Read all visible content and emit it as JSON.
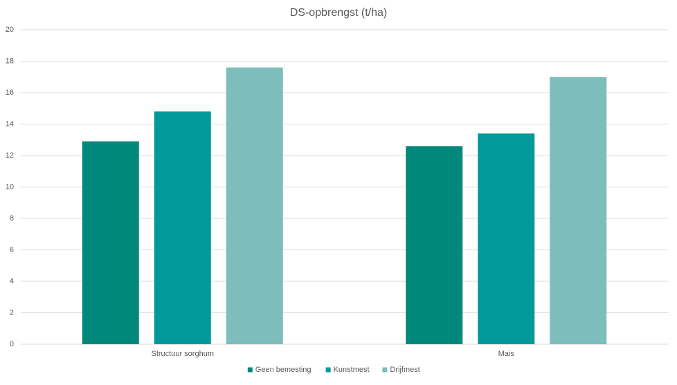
{
  "chart_data": {
    "type": "bar",
    "title": "DS-opbrengst (t/ha)",
    "categories": [
      "Structuur sorghum",
      "Mais"
    ],
    "series": [
      {
        "name": "Geen bemesting",
        "color": "#00897b",
        "values": [
          12.9,
          12.6
        ]
      },
      {
        "name": "Kunstmest",
        "color": "#009a9a",
        "values": [
          14.8,
          13.4
        ]
      },
      {
        "name": "Drijfmest",
        "color": "#7dbdbc",
        "values": [
          17.6,
          17.0
        ]
      }
    ],
    "ylim": [
      0,
      20
    ],
    "yticks": [
      0,
      2,
      4,
      6,
      8,
      10,
      12,
      14,
      16,
      18,
      20
    ],
    "grid": true,
    "legend": "bottom"
  }
}
